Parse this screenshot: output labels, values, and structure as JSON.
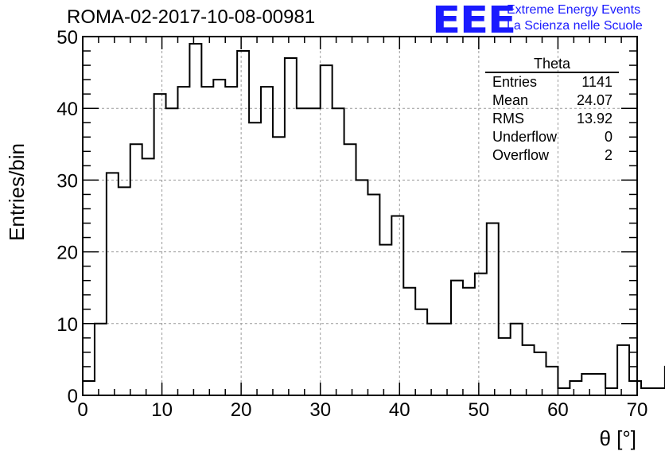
{
  "title": "ROMA-02-2017-10-08-00981",
  "logo": {
    "mark": "EEE",
    "line1": "Extreme Energy Events",
    "line2": "La Scienza nelle Scuole",
    "color": "#1a1aff"
  },
  "stats": {
    "name": "Theta",
    "rows": [
      {
        "label": "Entries",
        "value": "1141"
      },
      {
        "label": "Mean",
        "value": "24.07"
      },
      {
        "label": "RMS",
        "value": "13.92"
      },
      {
        "label": "Underflow",
        "value": "0"
      },
      {
        "label": "Overflow",
        "value": "2"
      }
    ]
  },
  "chart_data": {
    "type": "bar",
    "histogram": true,
    "xlabel": "θ [°]",
    "ylabel": "Entries/bin",
    "xlim": [
      0,
      70
    ],
    "ylim": [
      0,
      50
    ],
    "xticks": [
      0,
      10,
      20,
      30,
      40,
      50,
      60,
      70
    ],
    "yticks": [
      0,
      10,
      20,
      30,
      40,
      50
    ],
    "grid": true,
    "bin_width": 1.5,
    "bin_edges_start": 0,
    "values": [
      2,
      10,
      31,
      29,
      35,
      33,
      42,
      40,
      43,
      49,
      43,
      44,
      43,
      48,
      38,
      43,
      36,
      47,
      40,
      40,
      46,
      40,
      35,
      30,
      28,
      21,
      25,
      15,
      12,
      10,
      10,
      16,
      15,
      17,
      24,
      8,
      10,
      7,
      6,
      4,
      1,
      2,
      3,
      3,
      1,
      7,
      2,
      1,
      1,
      4
    ]
  }
}
